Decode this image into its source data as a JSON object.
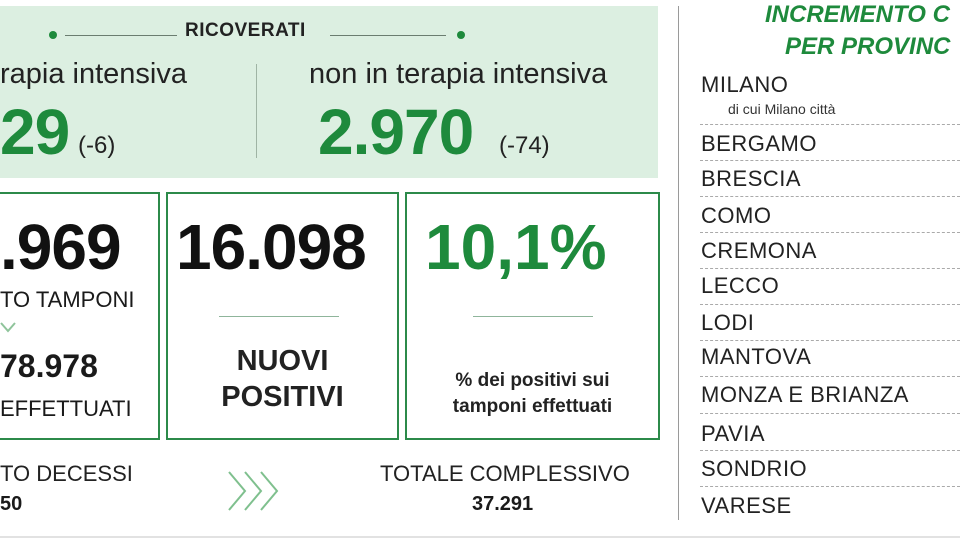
{
  "hospitalized": {
    "title": "RICOVERATI",
    "icu_label": "rapia intensiva",
    "icu_value": "29",
    "icu_delta": "(-6)",
    "non_icu_label": "non in terapia intensiva",
    "non_icu_value": "2.970",
    "non_icu_delta": "(-74)"
  },
  "tests_box": {
    "value": ".969",
    "label": "TO TAMPONI",
    "total_value": "78.978",
    "total_label": "EFFETTUATI"
  },
  "new_positives_box": {
    "value": "16.098",
    "label_line1": "NUOVI",
    "label_line2": "POSITIVI"
  },
  "positivity_box": {
    "value": "10,1%",
    "label_line1": "% dei positivi sui",
    "label_line2": "tamponi effettuati"
  },
  "deaths": {
    "label": "TO DECESSI",
    "value": "50",
    "total_label": "TOTALE COMPLESSIVO",
    "total_value": "37.291"
  },
  "provinces": {
    "title_line1": "INCREMENTO C",
    "title_line2": "PER PROVINC",
    "milano_sub": "di cui Milano città",
    "items": [
      "MILANO",
      "BERGAMO",
      "BRESCIA",
      "COMO",
      "CREMONA",
      "LECCO",
      "LODI",
      "MANTOVA",
      "MONZA E BRIANZA",
      "PAVIA",
      "SONDRIO",
      "VARESE"
    ]
  },
  "colors": {
    "accent_green": "#1e8a3c",
    "panel_bg": "#dcefe1",
    "text_dark": "#111111"
  }
}
